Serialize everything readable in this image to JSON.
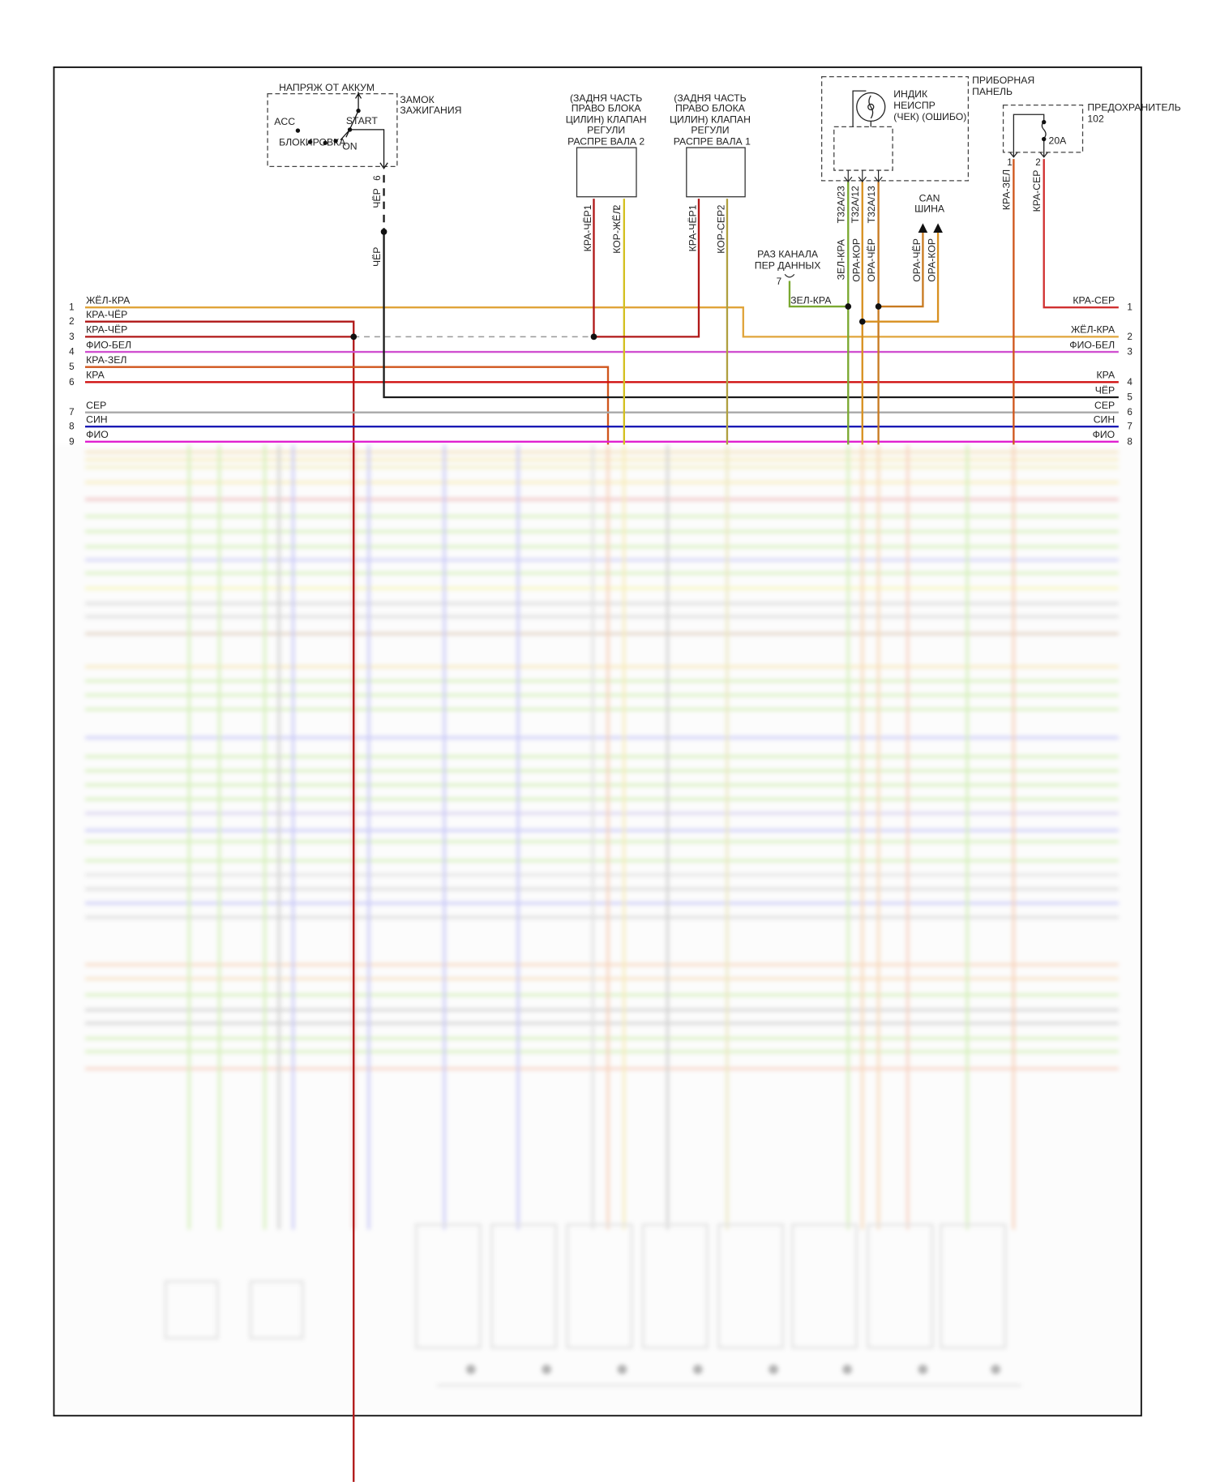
{
  "colors": {
    "zhel_kra": "#e0a43a",
    "kra_cher": "#b01818",
    "fio_bel": "#d050d0",
    "kra_zel": "#d0561c",
    "kra": "#d01010",
    "ser": "#a8a8a8",
    "sin": "#1a1ab4",
    "fio": "#e020d0",
    "cher": "#1c1c1c",
    "kor_zhel": "#d4c020",
    "kor_ser": "#b0a040",
    "zel_kra": "#7aa830",
    "ora_kor": "#d89020",
    "ora_cher": "#c87a20",
    "kra_ser": "#d03030"
  },
  "ignition": {
    "title": "НАПРЯЖ ОТ АККУМ",
    "name_line1": "ЗАМОК",
    "name_line2": "ЗАЖИГАНИЯ",
    "acc": "ACC",
    "start": "START",
    "lock": "БЛОКИРОВКА",
    "on": "ON",
    "pin": "6",
    "wire_top": "ЧЁР",
    "wire_bottom": "ЧЁР"
  },
  "valve2": {
    "lines": [
      "(ЗАДНЯ ЧАСТЬ",
      "ПРАВО БЛОКА",
      "ЦИЛИН) КЛАПАН",
      "РЕГУЛИ",
      "РАСПРЕ ВАЛА 2"
    ],
    "pin1": "1",
    "wire1": "КРА-ЧЁР",
    "pin2": "2",
    "wire2": "КОР-ЖЁЛ"
  },
  "valve1": {
    "lines": [
      "(ЗАДНЯ ЧАСТЬ",
      "ПРАВО БЛОКА",
      "ЦИЛИН) КЛАПАН",
      "РЕГУЛИ",
      "РАСПРЕ ВАЛА 1"
    ],
    "pin1": "1",
    "wire1": "КРА-ЧЁР",
    "pin2": "2",
    "wire2": "КОР-СЕР"
  },
  "instrument_panel": {
    "name_line1": "ПРИБОРНАЯ",
    "name_line2": "ПАНЕЛЬ",
    "lamp_line1": "ИНДИК",
    "lamp_line2": "НЕИСПР",
    "lamp_line3": "(ЧЕК)  (ОШИБО)",
    "pins": [
      "T32A/23",
      "T32A/12",
      "T32A/13"
    ],
    "wires": [
      "ЗЕЛ-КРА",
      "ОРА-КОР",
      "ОРА-ЧЁР"
    ]
  },
  "can_bus": {
    "line1": "CAN",
    "line2": "ШИНА",
    "wires": [
      "ОРА-ЧЁР",
      "ОРА-КОР"
    ]
  },
  "data_link": {
    "line1": "РАЗ КАНАЛА",
    "line2": "ПЕР ДАННЫХ",
    "pin": "7",
    "wire": "ЗЕЛ-КРА"
  },
  "fuse": {
    "name": "ПРЕДОХРАНИТЕЛЬ",
    "number": "102",
    "rating": "20A",
    "pin1": "1",
    "wire1": "КРА-ЗЕЛ",
    "pin2": "2",
    "wire2": "КРА-СЕР"
  },
  "left_connector": [
    {
      "pin": "1",
      "label": "ЖЁЛ-КРА"
    },
    {
      "pin": "2",
      "label": "КРА-ЧЁР"
    },
    {
      "pin": "3",
      "label": "КРА-ЧЁР"
    },
    {
      "pin": "4",
      "label": "ФИО-БЕЛ"
    },
    {
      "pin": "5",
      "label": "КРА-ЗЕЛ"
    },
    {
      "pin": "6",
      "label": "КРА"
    },
    {
      "pin": "7",
      "label": "СЕР"
    },
    {
      "pin": "8",
      "label": "СИН"
    },
    {
      "pin": "9",
      "label": "ФИО"
    }
  ],
  "right_connector": [
    {
      "pin": "1",
      "label": "КРА-СЕР"
    },
    {
      "pin": "2",
      "label": "ЖЁЛ-КРА"
    },
    {
      "pin": "3",
      "label": "ФИО-БЕЛ"
    },
    {
      "pin": "4",
      "label": "КРА"
    },
    {
      "pin": "5",
      "label": "ЧЁР"
    },
    {
      "pin": "6",
      "label": "СЕР"
    },
    {
      "pin": "7",
      "label": "СИН"
    },
    {
      "pin": "8",
      "label": "ФИО"
    }
  ]
}
